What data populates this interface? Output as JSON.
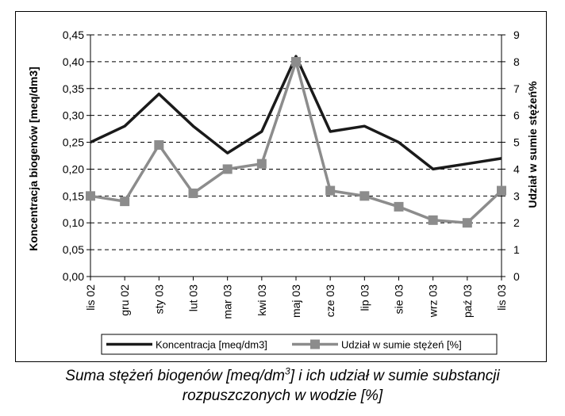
{
  "chart_data": {
    "type": "line",
    "categories": [
      "lis 02",
      "gru 02",
      "sty 03",
      "lut 03",
      "mar 03",
      "kwi 03",
      "maj 03",
      "cze 03",
      "lip 03",
      "sie 03",
      "wrz 03",
      "paź 03",
      "lis 03"
    ],
    "series": [
      {
        "name": "Koncentracja [meq/dm3]",
        "axis": "left",
        "color": "#1a1a1a",
        "marker": "none",
        "values": [
          0.25,
          0.28,
          0.34,
          0.28,
          0.23,
          0.27,
          0.41,
          0.27,
          0.28,
          0.25,
          0.2,
          0.21,
          0.22
        ]
      },
      {
        "name": "Udział w sumie stężeń [%]",
        "axis": "right",
        "color": "#8c8c8c",
        "marker": "square",
        "values": [
          3.0,
          2.8,
          4.9,
          3.1,
          4.0,
          4.2,
          8.0,
          3.2,
          3.0,
          2.6,
          2.1,
          2.0,
          3.2
        ]
      }
    ],
    "ylabel": "Koncentracja biogenów [meq/dm3]",
    "ylabel_right": "Udział w sumie stężeń%",
    "ylim": [
      0,
      0.45
    ],
    "ylim_right": [
      0,
      9
    ],
    "yticks": [
      "0,00",
      "0,05",
      "0,10",
      "0,15",
      "0,20",
      "0,25",
      "0,30",
      "0,35",
      "0,40",
      "0,45"
    ],
    "yticks_right": [
      "0",
      "1",
      "2",
      "3",
      "4",
      "5",
      "6",
      "7",
      "8",
      "9"
    ],
    "grid": "horizontal dashed",
    "legend_position": "bottom"
  },
  "caption": {
    "line1_before_sup": "Suma stężeń biogenów [meq/dm",
    "line1_sup": "3",
    "line1_after_sup": "] i ich udział w sumie substancji",
    "line2": "rozpuszczonych w wodzie [%]"
  }
}
